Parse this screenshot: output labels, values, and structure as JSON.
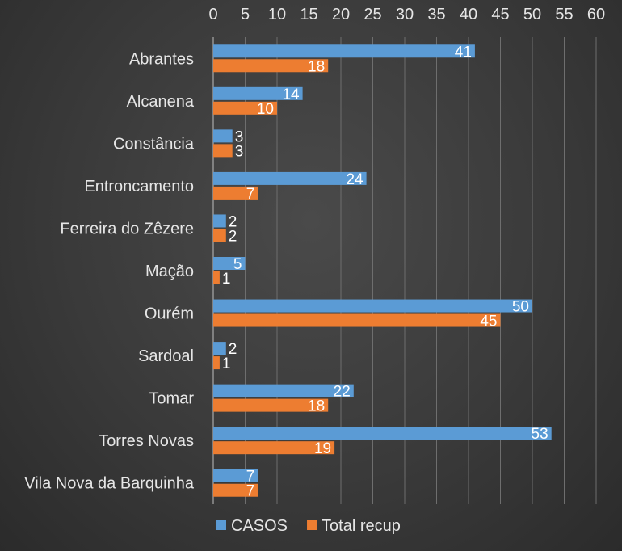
{
  "chart_data": {
    "type": "bar",
    "orientation": "horizontal",
    "x_axis_position": "top",
    "xlim": [
      0,
      60
    ],
    "x_ticks": [
      0,
      5,
      10,
      15,
      20,
      25,
      30,
      35,
      40,
      45,
      50,
      55,
      60
    ],
    "grid": true,
    "legend_position": "bottom",
    "categories": [
      "Abrantes",
      "Alcanena",
      "Constância",
      "Entroncamento",
      "Ferreira do Zêzere",
      "Mação",
      "Ourém",
      "Sardoal",
      "Tomar",
      "Torres Novas",
      "Vila Nova da Barquinha"
    ],
    "series": [
      {
        "name": "CASOS",
        "color": "#5b9bd5",
        "values": [
          41,
          14,
          3,
          24,
          2,
          5,
          50,
          2,
          22,
          53,
          7
        ]
      },
      {
        "name": "Total recup",
        "color": "#ed7d31",
        "values": [
          18,
          10,
          3,
          7,
          2,
          1,
          45,
          1,
          18,
          19,
          7
        ]
      }
    ]
  }
}
